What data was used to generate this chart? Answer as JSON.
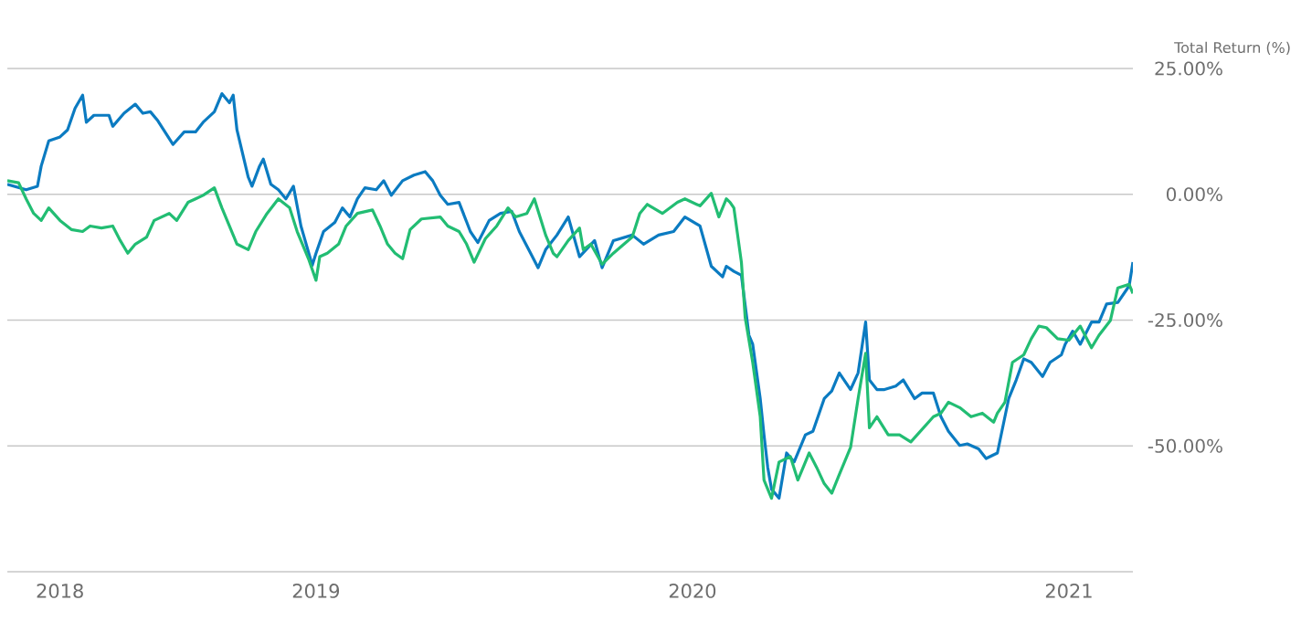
{
  "chart_data": {
    "type": "line",
    "ylabel": "Total Return (%)",
    "xlim": [
      2018.18,
      2021.17
    ],
    "xticks": [
      {
        "value": 2018.32,
        "label": "2018"
      },
      {
        "value": 2019.0,
        "label": "2019"
      },
      {
        "value": 2020.0,
        "label": "2020"
      },
      {
        "value": 2021.0,
        "label": "2021"
      }
    ],
    "ylim": [
      -75,
      25
    ],
    "yticks": [
      {
        "value": 25,
        "label": "25.00%"
      },
      {
        "value": 0,
        "label": "0.00%"
      },
      {
        "value": -25,
        "label": "-25.00%"
      },
      {
        "value": -50,
        "label": "-50.00%"
      },
      {
        "value": -75,
        "label": null
      }
    ],
    "grid": "y",
    "legend": false,
    "marker": "none",
    "line_style": "solid",
    "series": [
      {
        "color": "#0b7bc1",
        "x": [
          2018.18,
          2018.23,
          2018.26,
          2018.27,
          2018.29,
          2018.32,
          2018.34,
          2018.36,
          2018.38,
          2018.39,
          2018.41,
          2018.45,
          2018.46,
          2018.49,
          2018.52,
          2018.54,
          2018.56,
          2018.58,
          2018.62,
          2018.65,
          2018.68,
          2018.7,
          2018.73,
          2018.75,
          2018.77,
          2018.78,
          2018.79,
          2018.82,
          2018.83,
          2018.85,
          2018.86,
          2018.88,
          2018.9,
          2018.92,
          2018.94,
          2018.96,
          2018.99,
          2019.0,
          2019.02,
          2019.05,
          2019.07,
          2019.09,
          2019.11,
          2019.13,
          2019.16,
          2019.18,
          2019.2,
          2019.23,
          2019.26,
          2019.29,
          2019.31,
          2019.33,
          2019.35,
          2019.38,
          2019.41,
          2019.43,
          2019.46,
          2019.49,
          2019.52,
          2019.54,
          2019.57,
          2019.59,
          2019.61,
          2019.64,
          2019.67,
          2019.7,
          2019.74,
          2019.76,
          2019.79,
          2019.84,
          2019.87,
          2019.91,
          2019.95,
          2019.98,
          2020.02,
          2020.05,
          2020.08,
          2020.09,
          2020.11,
          2020.13,
          2020.15,
          2020.16,
          2020.18,
          2020.19,
          2020.2,
          2020.21,
          2020.23,
          2020.25,
          2020.27,
          2020.3,
          2020.32,
          2020.35,
          2020.37,
          2020.39,
          2020.42,
          2020.44,
          2020.46,
          2020.47,
          2020.49,
          2020.51,
          2020.54,
          2020.56,
          2020.59,
          2020.61,
          2020.64,
          2020.66,
          2020.68,
          2020.71,
          2020.73,
          2020.76,
          2020.78,
          2020.81,
          2020.84,
          2020.86,
          2020.88,
          2020.9,
          2020.93,
          2020.95,
          2020.98,
          2020.99,
          2021.01,
          2021.03,
          2021.06,
          2021.08,
          2021.1,
          2021.13,
          2021.16,
          2021.17
        ],
        "values": [
          2.0,
          0.9,
          1.6,
          5.6,
          10.6,
          11.4,
          12.8,
          17.1,
          19.7,
          14.3,
          15.7,
          15.7,
          13.5,
          16.1,
          17.9,
          16.1,
          16.4,
          14.6,
          9.9,
          12.4,
          12.4,
          14.3,
          16.4,
          20.0,
          18.2,
          19.7,
          12.8,
          3.4,
          1.6,
          5.6,
          7.0,
          2.0,
          0.9,
          -0.9,
          1.6,
          -6.3,
          -14.1,
          -11.7,
          -7.4,
          -5.6,
          -2.7,
          -4.5,
          -0.9,
          1.3,
          0.9,
          2.7,
          -0.2,
          2.7,
          3.8,
          4.5,
          2.7,
          -0.2,
          -2.0,
          -1.6,
          -7.4,
          -9.6,
          -5.2,
          -3.8,
          -3.4,
          -7.4,
          -11.7,
          -14.6,
          -11.0,
          -8.1,
          -4.5,
          -12.4,
          -9.2,
          -14.6,
          -9.2,
          -8.1,
          -9.9,
          -8.1,
          -7.4,
          -4.5,
          -6.3,
          -14.3,
          -16.4,
          -14.3,
          -15.3,
          -16.1,
          -28.0,
          -29.8,
          -40.6,
          -47.8,
          -54.3,
          -58.6,
          -60.4,
          -51.4,
          -53.2,
          -47.8,
          -47.1,
          -40.6,
          -39.1,
          -35.5,
          -38.8,
          -35.5,
          -25.4,
          -36.9,
          -38.8,
          -38.8,
          -38.1,
          -36.9,
          -40.6,
          -39.5,
          -39.5,
          -44.2,
          -47.1,
          -49.9,
          -49.6,
          -50.6,
          -52.5,
          -51.4,
          -40.6,
          -36.9,
          -32.7,
          -33.4,
          -36.2,
          -33.4,
          -31.9,
          -29.8,
          -27.2,
          -29.8,
          -25.4,
          -25.4,
          -21.8,
          -21.5,
          -18.2,
          -13.5
        ]
      },
      {
        "color": "#22bd73",
        "x": [
          2018.18,
          2018.21,
          2018.23,
          2018.25,
          2018.27,
          2018.29,
          2018.32,
          2018.35,
          2018.38,
          2018.4,
          2018.43,
          2018.46,
          2018.48,
          2018.5,
          2018.52,
          2018.55,
          2018.57,
          2018.61,
          2018.63,
          2018.66,
          2018.68,
          2018.7,
          2018.73,
          2018.75,
          2018.78,
          2018.79,
          2018.82,
          2018.84,
          2018.87,
          2018.9,
          2018.93,
          2018.95,
          2018.98,
          2019.0,
          2019.01,
          2019.03,
          2019.06,
          2019.08,
          2019.11,
          2019.15,
          2019.17,
          2019.19,
          2019.21,
          2019.23,
          2019.25,
          2019.28,
          2019.33,
          2019.35,
          2019.38,
          2019.4,
          2019.42,
          2019.45,
          2019.48,
          2019.51,
          2019.53,
          2019.56,
          2019.58,
          2019.61,
          2019.63,
          2019.64,
          2019.67,
          2019.7,
          2019.71,
          2019.73,
          2019.76,
          2019.79,
          2019.84,
          2019.86,
          2019.88,
          2019.92,
          2019.96,
          2019.98,
          2020.02,
          2020.05,
          2020.07,
          2020.09,
          2020.1,
          2020.11,
          2020.13,
          2020.14,
          2020.16,
          2020.18,
          2020.19,
          2020.21,
          2020.23,
          2020.26,
          2020.28,
          2020.31,
          2020.33,
          2020.35,
          2020.37,
          2020.39,
          2020.42,
          2020.44,
          2020.46,
          2020.47,
          2020.49,
          2020.52,
          2020.55,
          2020.58,
          2020.61,
          2020.64,
          2020.66,
          2020.68,
          2020.71,
          2020.74,
          2020.77,
          2020.8,
          2020.81,
          2020.83,
          2020.85,
          2020.88,
          2020.9,
          2020.92,
          2020.94,
          2020.97,
          2021.0,
          2021.03,
          2021.06,
          2021.08,
          2021.11,
          2021.13,
          2021.16,
          2021.17
        ],
        "values": [
          2.7,
          2.3,
          -0.9,
          -3.8,
          -5.2,
          -2.7,
          -5.2,
          -7.0,
          -7.4,
          -6.3,
          -6.7,
          -6.3,
          -9.2,
          -11.7,
          -9.9,
          -8.5,
          -5.2,
          -3.8,
          -5.2,
          -1.6,
          -0.9,
          -0.2,
          1.3,
          -2.7,
          -8.1,
          -9.9,
          -11.0,
          -7.4,
          -3.8,
          -0.9,
          -2.7,
          -7.4,
          -12.8,
          -17.1,
          -12.4,
          -11.7,
          -9.9,
          -6.3,
          -3.8,
          -3.1,
          -6.3,
          -9.9,
          -11.7,
          -12.8,
          -7.0,
          -4.9,
          -4.5,
          -6.3,
          -7.4,
          -9.9,
          -13.5,
          -8.8,
          -6.3,
          -2.7,
          -4.5,
          -3.8,
          -0.9,
          -8.1,
          -11.7,
          -12.4,
          -9.2,
          -6.7,
          -11.0,
          -9.9,
          -13.9,
          -11.7,
          -8.5,
          -3.8,
          -2.0,
          -3.8,
          -1.6,
          -0.9,
          -2.3,
          0.2,
          -4.5,
          -0.9,
          -1.6,
          -2.7,
          -13.5,
          -24.5,
          -33.4,
          -44.2,
          -56.8,
          -60.4,
          -53.2,
          -52.1,
          -56.8,
          -51.4,
          -54.3,
          -57.5,
          -59.4,
          -55.7,
          -50.3,
          -40.6,
          -31.6,
          -46.4,
          -44.2,
          -47.8,
          -47.8,
          -49.2,
          -46.7,
          -44.2,
          -43.5,
          -41.3,
          -42.4,
          -44.2,
          -43.5,
          -45.3,
          -43.5,
          -41.3,
          -33.4,
          -31.9,
          -28.7,
          -26.2,
          -26.5,
          -28.7,
          -29.0,
          -26.2,
          -30.5,
          -28.0,
          -25.1,
          -18.6,
          -17.9,
          -19.7
        ]
      }
    ]
  }
}
